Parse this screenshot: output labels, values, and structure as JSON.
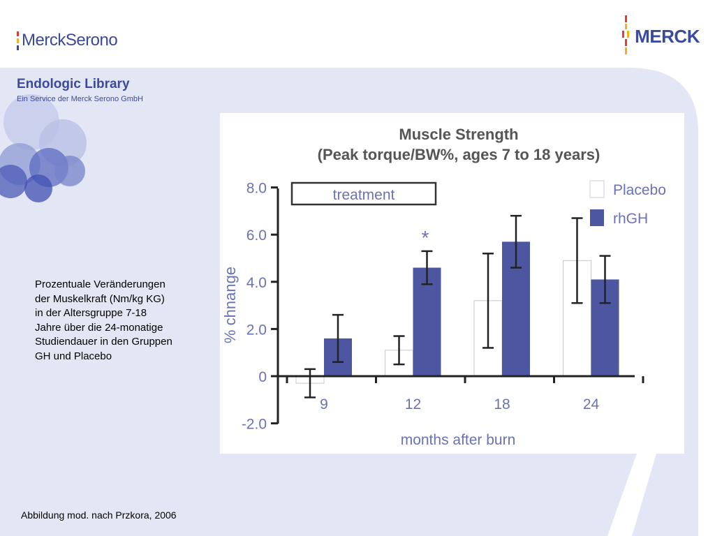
{
  "header": {
    "merck_serono_logo": {
      "text": "MerckSerono",
      "colors": [
        "#e63c2f",
        "#f6b117",
        "#3b4a9c"
      ]
    },
    "merck_logo": {
      "text": "MERCK",
      "color": "#3b4a9c"
    }
  },
  "library": {
    "title": "Endologic Library",
    "subtitle": "Ein Service der Merck Serono GmbH"
  },
  "description": "Prozentuale Veränderungen der Muskelkraft (Nm/kg KG) in der Altersgruppe 7-18 Jahre über die 24-monatige Studiendauer in den Gruppen GH und Placebo",
  "citation": "Abbildung mod. nach Przkora, 2006",
  "colors": {
    "background_panel": "#e3e6f4",
    "rhgh": "#4d57a1",
    "placebo": "#ffffff",
    "axis": "#222222",
    "title_text": "#555555",
    "axis_text": "#6a72b4"
  },
  "chart_data": {
    "type": "bar",
    "title": "Muscle Strength",
    "subtitle": "(Peak torque/BW%, ages 7 to 18 years)",
    "xlabel": "months after burn",
    "ylabel": "% chnange",
    "ylim": [
      -2.0,
      8.0
    ],
    "yticks": [
      "-2.0",
      "0",
      "2.0",
      "4.0",
      "6.0",
      "8.0"
    ],
    "ytick_values": [
      -2,
      0,
      2,
      4,
      6,
      8
    ],
    "categories": [
      "9",
      "12",
      "18",
      "24"
    ],
    "series": [
      {
        "name": "Placebo",
        "values": [
          -0.3,
          1.1,
          3.2,
          4.9
        ],
        "errors": [
          0.6,
          0.6,
          2.0,
          1.8
        ],
        "color": "#ffffff"
      },
      {
        "name": "rhGH",
        "values": [
          1.6,
          4.6,
          5.7,
          4.1
        ],
        "errors": [
          1.0,
          0.7,
          1.1,
          1.0
        ],
        "color": "#4d57a1"
      }
    ],
    "annotations": [
      {
        "text": "*",
        "category": "12",
        "series": "rhGH"
      }
    ],
    "treatment_label": "treatment",
    "treatment_range": [
      "9",
      "12"
    ],
    "legend_placement": "top-right",
    "grid": false
  }
}
